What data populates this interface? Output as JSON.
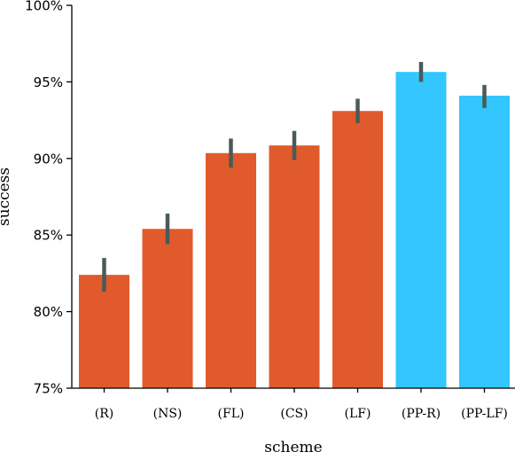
{
  "chart_data": {
    "type": "bar",
    "title": "",
    "xlabel": "scheme",
    "ylabel": "success",
    "categories": [
      "(R)",
      "(NS)",
      "(FL)",
      "(CS)",
      "(LF)",
      "(PP-R)",
      "(PP-LF)"
    ],
    "values": [
      82.4,
      85.4,
      90.35,
      90.85,
      93.1,
      95.65,
      94.1
    ],
    "error_low": [
      81.3,
      84.4,
      89.4,
      89.9,
      92.3,
      95.0,
      93.3
    ],
    "error_high": [
      83.5,
      86.4,
      91.3,
      91.8,
      93.9,
      96.3,
      94.8
    ],
    "bar_colors": [
      "#e15a2b",
      "#e15a2b",
      "#e15a2b",
      "#e15a2b",
      "#e15a2b",
      "#33c6ff",
      "#33c6ff"
    ],
    "errorbar_color": "#4a5a57",
    "ylim": [
      75,
      100
    ],
    "yticks": [
      75,
      80,
      85,
      90,
      95,
      100
    ],
    "ytick_labels": [
      "75%",
      "80%",
      "85%",
      "90%",
      "95%",
      "100%"
    ],
    "grid": false,
    "legend": "none"
  }
}
